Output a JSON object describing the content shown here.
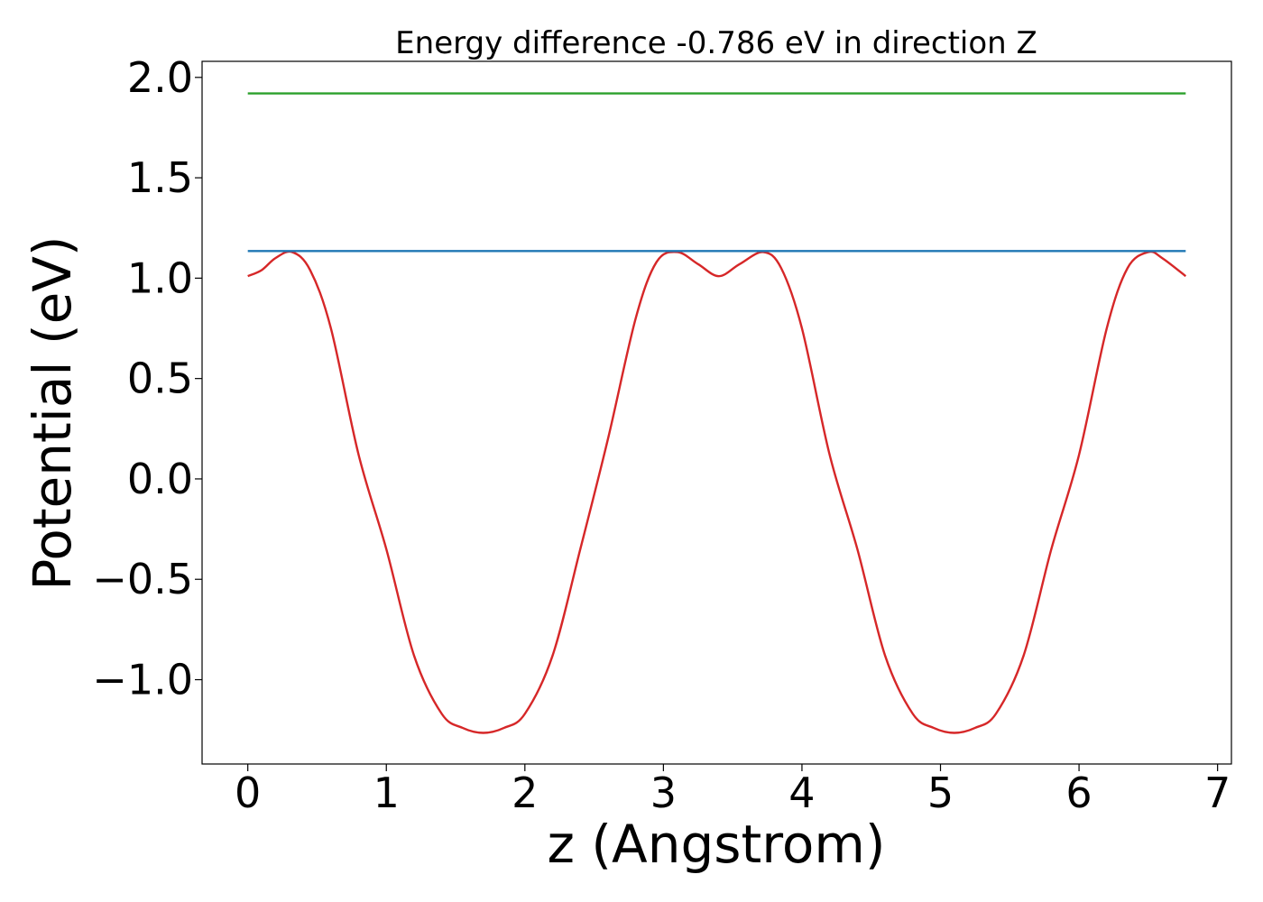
{
  "chart_data": {
    "type": "line",
    "title": "Energy difference -0.786 eV in direction Z",
    "xlabel": "z (Angstrom)",
    "ylabel": "Potential (eV)",
    "xlim": [
      -0.33,
      7.1
    ],
    "ylim": [
      -1.42,
      2.08
    ],
    "xticks": [
      0,
      1,
      2,
      3,
      4,
      5,
      6,
      7
    ],
    "xtick_labels": [
      "0",
      "1",
      "2",
      "3",
      "4",
      "5",
      "6",
      "7"
    ],
    "yticks": [
      2.0,
      1.5,
      1.0,
      0.5,
      0.0,
      -0.5,
      -1.0
    ],
    "ytick_labels": [
      "2.0",
      "1.5",
      "1.0",
      "0.5",
      "0.0",
      "−0.5",
      "−1.0"
    ],
    "grid": false,
    "series": [
      {
        "color": "#d62728",
        "x": [
          0,
          0.1,
          0.2,
          0.32,
          0.45,
          0.6,
          0.8,
          1.0,
          1.2,
          1.4,
          1.55,
          1.7,
          1.85,
          2.0,
          2.2,
          2.4,
          2.6,
          2.8,
          2.95,
          3.1,
          3.25,
          3.4,
          3.55,
          3.72,
          3.85,
          4.0,
          4.2,
          4.4,
          4.6,
          4.8,
          4.95,
          5.1,
          5.25,
          5.4,
          5.6,
          5.8,
          6.0,
          6.2,
          6.35,
          6.5,
          6.6,
          6.77
        ],
        "y": [
          1.01,
          1.04,
          1.1,
          1.13,
          1.04,
          0.75,
          0.12,
          -0.35,
          -0.88,
          -1.17,
          -1.24,
          -1.265,
          -1.24,
          -1.17,
          -0.88,
          -0.35,
          0.2,
          0.8,
          1.08,
          1.13,
          1.07,
          1.01,
          1.07,
          1.13,
          1.05,
          0.75,
          0.12,
          -0.35,
          -0.88,
          -1.17,
          -1.24,
          -1.265,
          -1.24,
          -1.17,
          -0.88,
          -0.35,
          0.12,
          0.75,
          1.05,
          1.13,
          1.1,
          1.01
        ]
      },
      {
        "color": "#1f77b4",
        "x": [
          0,
          6.77
        ],
        "y": [
          1.135,
          1.135
        ]
      },
      {
        "color": "#2ca02c",
        "x": [
          0,
          6.77
        ],
        "y": [
          1.92,
          1.92
        ]
      }
    ]
  }
}
